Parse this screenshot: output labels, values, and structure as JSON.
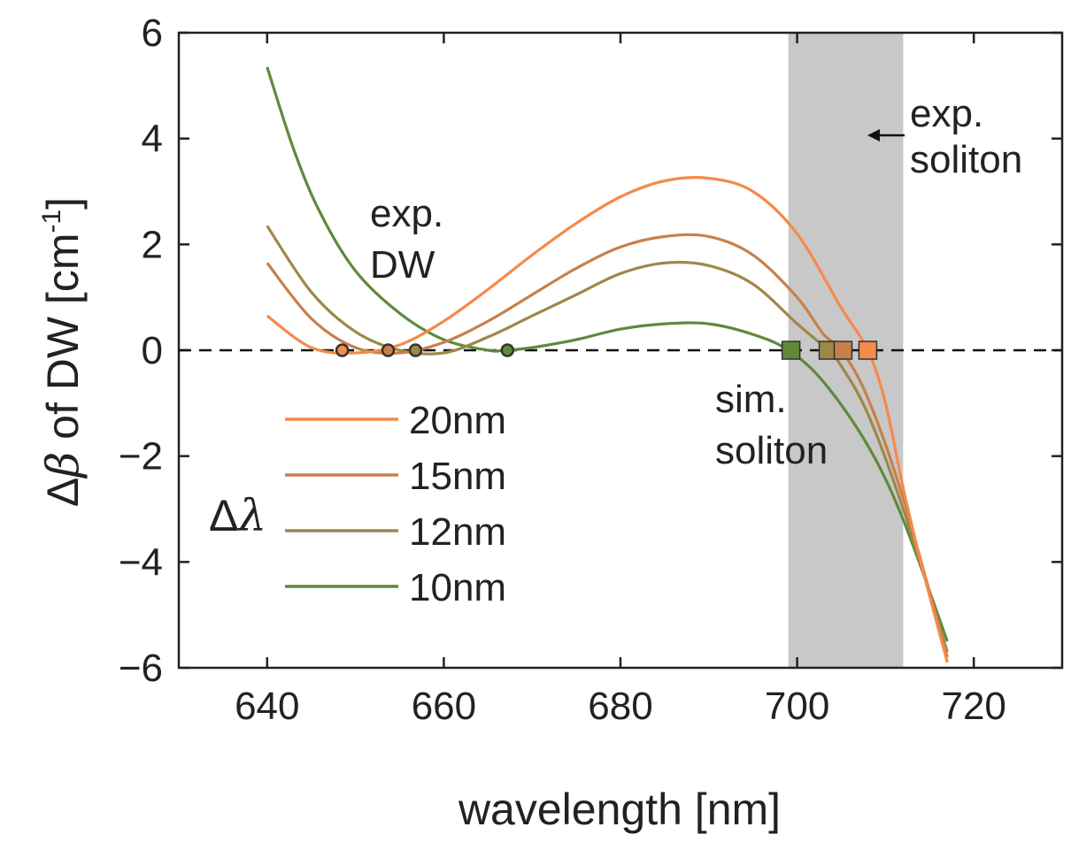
{
  "chart_data": {
    "type": "line",
    "title": "",
    "xlabel": "wavelength [nm]",
    "ylabel_parts": [
      "Δ",
      "β",
      " of DW [cm",
      "-1",
      "]"
    ],
    "xlim": [
      630,
      730
    ],
    "ylim": [
      -6,
      6
    ],
    "xticks": [
      640,
      660,
      680,
      700,
      720
    ],
    "yticks": [
      -6,
      -4,
      -2,
      0,
      2,
      4,
      6
    ],
    "ytick_labels": [
      "−6",
      "−4",
      "−2",
      "0",
      "2",
      "4",
      "6"
    ],
    "grid": false,
    "zero_line": {
      "y": 0,
      "style": "dashed"
    },
    "shaded_band": {
      "x_range": [
        699,
        712
      ],
      "color": "#c8c8c8"
    },
    "series": [
      {
        "name": "20nm",
        "color": "#f58a4b",
        "x": [
          640,
          645,
          650,
          655,
          660,
          665,
          670,
          675,
          680,
          685,
          690,
          695,
          700,
          705,
          708,
          710,
          712,
          714,
          717
        ],
        "y": [
          0.65,
          0.05,
          -0.05,
          0.1,
          0.55,
          1.15,
          1.8,
          2.4,
          2.9,
          3.2,
          3.25,
          3.0,
          2.2,
          0.8,
          0.0,
          -1.0,
          -2.6,
          -4.0,
          -5.9
        ],
        "dw_marker": {
          "x": 648.5,
          "y": 0
        },
        "soliton_marker": {
          "x": 708,
          "y": 0
        }
      },
      {
        "name": "15nm",
        "color": "#c7804a",
        "x": [
          640,
          645,
          650,
          655,
          660,
          665,
          670,
          675,
          680,
          685,
          690,
          695,
          700,
          703,
          705,
          708,
          712,
          717
        ],
        "y": [
          1.65,
          0.6,
          0.05,
          -0.05,
          0.15,
          0.55,
          1.05,
          1.55,
          1.95,
          2.15,
          2.15,
          1.8,
          1.0,
          0.3,
          0.0,
          -0.9,
          -2.8,
          -5.8
        ],
        "dw_marker": {
          "x": 653.7,
          "y": 0
        },
        "soliton_marker": {
          "x": 705.2,
          "y": 0
        }
      },
      {
        "name": "12nm",
        "color": "#9e8848",
        "x": [
          640,
          645,
          650,
          655,
          660,
          665,
          670,
          675,
          680,
          685,
          690,
          695,
          700,
          703.5,
          705,
          708,
          712,
          717
        ],
        "y": [
          2.35,
          1.1,
          0.35,
          0.0,
          -0.05,
          0.25,
          0.65,
          1.05,
          1.45,
          1.65,
          1.6,
          1.25,
          0.5,
          0.0,
          -0.3,
          -1.2,
          -3.0,
          -5.7
        ],
        "dw_marker": {
          "x": 656.8,
          "y": 0
        },
        "soliton_marker": {
          "x": 703.5,
          "y": 0
        }
      },
      {
        "name": "10nm",
        "color": "#5f8a3a",
        "x": [
          640,
          643,
          646,
          650,
          655,
          660,
          665,
          667,
          670,
          675,
          680,
          685,
          690,
          695,
          699,
          703,
          708,
          712,
          717
        ],
        "y": [
          5.35,
          3.8,
          2.6,
          1.5,
          0.7,
          0.2,
          0.0,
          0.0,
          0.05,
          0.2,
          0.4,
          0.5,
          0.5,
          0.3,
          0.0,
          -0.6,
          -1.8,
          -3.2,
          -5.5
        ],
        "dw_marker": {
          "x": 667.2,
          "y": 0
        },
        "soliton_marker": {
          "x": 699.3,
          "y": 0
        }
      }
    ],
    "legend": {
      "title_parts": [
        "Δ",
        "λ"
      ],
      "placement": "lower-left",
      "entries": [
        "20nm",
        "15nm",
        "12nm",
        "10nm"
      ]
    },
    "annotations": {
      "exp_dw": [
        "exp.",
        "DW"
      ],
      "sim_soliton": [
        "sim.",
        "soliton"
      ],
      "exp_soliton": [
        "exp.",
        "soliton"
      ]
    },
    "colors": {
      "axis": "#222222",
      "zero_line": "#111111",
      "marker_edge": "#333333"
    }
  }
}
